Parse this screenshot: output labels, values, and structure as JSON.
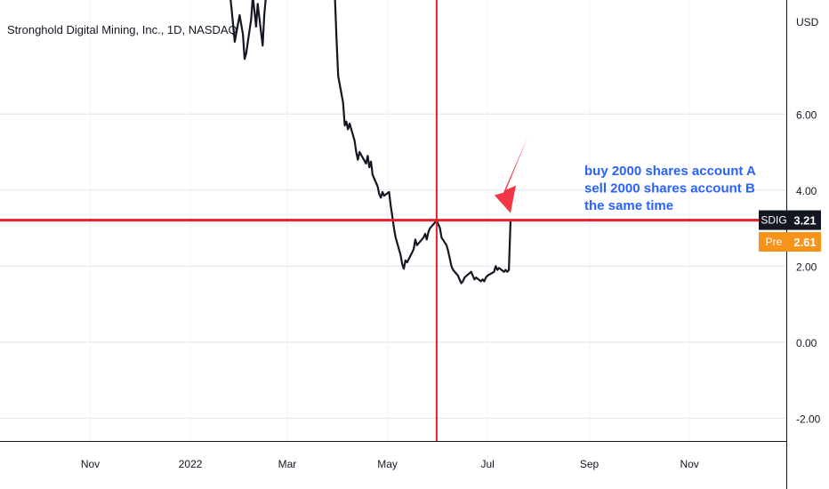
{
  "header": {
    "symbol_title": "Stronghold Digital Mining, Inc., 1D, NASDAQ",
    "currency": "USD"
  },
  "chart_data": {
    "type": "line",
    "title": "Stronghold Digital Mining, Inc., 1D, NASDAQ",
    "ylabel": "USD",
    "y_ticks": [
      "6.00",
      "4.00",
      "2.00",
      "0.00",
      "-2.00"
    ],
    "y_tick_values": [
      6,
      4,
      2,
      0,
      -2
    ],
    "x_ticks": [
      "Nov",
      "2022",
      "Mar",
      "May",
      "Jul",
      "Sep",
      "Nov"
    ],
    "x_tick_dates": [
      "2021-11-01",
      "2022-01-01",
      "2022-03-01",
      "2022-05-01",
      "2022-07-01",
      "2022-09-01",
      "2022-11-01"
    ],
    "ylim": [
      -2.6,
      9.0
    ],
    "xlim": [
      "2021-09-07",
      "2022-12-30"
    ],
    "grid": true,
    "series": [
      {
        "color": "#131722",
        "points": [
          [
            "2022-01-24",
            9.6
          ],
          [
            "2022-01-26",
            8.8
          ],
          [
            "2022-01-28",
            7.9
          ],
          [
            "2022-01-31",
            8.6
          ],
          [
            "2022-02-02",
            8.1
          ],
          [
            "2022-02-03",
            7.45
          ],
          [
            "2022-02-04",
            7.6
          ],
          [
            "2022-02-07",
            8.5
          ],
          [
            "2022-02-08",
            9.1
          ],
          [
            "2022-02-09",
            8.7
          ],
          [
            "2022-02-10",
            8.3
          ],
          [
            "2022-02-11",
            8.9
          ],
          [
            "2022-02-14",
            7.8
          ],
          [
            "2022-02-15",
            8.6
          ],
          [
            "2022-02-16",
            9.1
          ],
          [
            "2022-03-30",
            9.1
          ],
          [
            "2022-03-31",
            8.0
          ],
          [
            "2022-04-01",
            7.0
          ],
          [
            "2022-04-04",
            6.3
          ],
          [
            "2022-04-05",
            5.7
          ],
          [
            "2022-04-06",
            5.8
          ],
          [
            "2022-04-07",
            5.6
          ],
          [
            "2022-04-08",
            5.75
          ],
          [
            "2022-04-11",
            5.3
          ],
          [
            "2022-04-12",
            5.0
          ],
          [
            "2022-04-13",
            4.8
          ],
          [
            "2022-04-14",
            5.0
          ],
          [
            "2022-04-18",
            4.7
          ],
          [
            "2022-04-19",
            4.9
          ],
          [
            "2022-04-20",
            4.6
          ],
          [
            "2022-04-21",
            4.75
          ],
          [
            "2022-04-22",
            4.4
          ],
          [
            "2022-04-25",
            4.1
          ],
          [
            "2022-04-26",
            3.9
          ],
          [
            "2022-04-27",
            3.8
          ],
          [
            "2022-04-28",
            3.95
          ],
          [
            "2022-04-29",
            3.85
          ],
          [
            "2022-05-02",
            3.95
          ],
          [
            "2022-05-03",
            3.6
          ],
          [
            "2022-05-04",
            3.3
          ],
          [
            "2022-05-05",
            3.0
          ],
          [
            "2022-05-06",
            2.75
          ],
          [
            "2022-05-09",
            2.3
          ],
          [
            "2022-05-10",
            2.05
          ],
          [
            "2022-05-11",
            1.93
          ],
          [
            "2022-05-12",
            2.15
          ],
          [
            "2022-05-13",
            2.1
          ],
          [
            "2022-05-16",
            2.35
          ],
          [
            "2022-05-17",
            2.45
          ],
          [
            "2022-05-18",
            2.7
          ],
          [
            "2022-05-19",
            2.55
          ],
          [
            "2022-05-20",
            2.6
          ],
          [
            "2022-05-23",
            2.75
          ],
          [
            "2022-05-24",
            2.85
          ],
          [
            "2022-05-25",
            2.7
          ],
          [
            "2022-05-26",
            2.9
          ],
          [
            "2022-05-27",
            3.0
          ],
          [
            "2022-05-31",
            3.2
          ],
          [
            "2022-06-01",
            3.1
          ],
          [
            "2022-06-02",
            3.0
          ],
          [
            "2022-06-03",
            2.75
          ],
          [
            "2022-06-06",
            2.55
          ],
          [
            "2022-06-07",
            2.4
          ],
          [
            "2022-06-08",
            2.2
          ],
          [
            "2022-06-09",
            2.0
          ],
          [
            "2022-06-10",
            1.9
          ],
          [
            "2022-06-13",
            1.75
          ],
          [
            "2022-06-14",
            1.65
          ],
          [
            "2022-06-15",
            1.55
          ],
          [
            "2022-06-16",
            1.6
          ],
          [
            "2022-06-17",
            1.7
          ],
          [
            "2022-06-21",
            1.85
          ],
          [
            "2022-06-22",
            1.75
          ],
          [
            "2022-06-23",
            1.65
          ],
          [
            "2022-06-24",
            1.7
          ],
          [
            "2022-06-27",
            1.6
          ],
          [
            "2022-06-28",
            1.65
          ],
          [
            "2022-06-29",
            1.6
          ],
          [
            "2022-06-30",
            1.7
          ],
          [
            "2022-07-01",
            1.75
          ],
          [
            "2022-07-05",
            1.85
          ],
          [
            "2022-07-06",
            2.0
          ],
          [
            "2022-07-07",
            1.9
          ],
          [
            "2022-07-08",
            1.95
          ],
          [
            "2022-07-11",
            1.85
          ],
          [
            "2022-07-12",
            1.9
          ],
          [
            "2022-07-13",
            1.85
          ],
          [
            "2022-07-14",
            1.9
          ],
          [
            "2022-07-15",
            3.21
          ]
        ]
      }
    ],
    "crosshair": {
      "color": "#e8202e",
      "x_date": "2022-05-31",
      "y_value": 3.21
    },
    "price_labels": [
      {
        "label": "SDIG",
        "value_text": "3.21",
        "value": 3.21,
        "box_color": "#131722",
        "text_color": "#ffffff"
      },
      {
        "label": "Pre",
        "value_text": "2.61",
        "value": 2.61,
        "box_color": "#f7931a",
        "text_color": "#ffffff"
      }
    ],
    "annotations": {
      "text_lines": [
        "buy 2000 shares account A",
        "sell 2000 shares account B",
        "the same time"
      ],
      "text_color": "#2962ff",
      "arrow_color": "#f23645",
      "arrow_points_to_date": "2022-07-15",
      "arrow_points_to_value": 3.21
    }
  }
}
